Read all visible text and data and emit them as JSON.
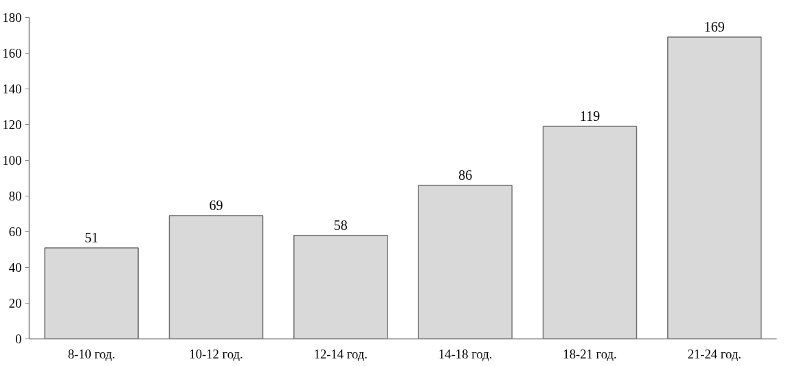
{
  "chart_data": {
    "type": "bar",
    "categories": [
      "8-10 год.",
      "10-12 год.",
      "12-14 год.",
      "14-18 год.",
      "18-21 год.",
      "21-24 год."
    ],
    "values": [
      51,
      69,
      58,
      86,
      119,
      169
    ],
    "color": "#d9d9d9",
    "ylim": [
      0,
      180
    ],
    "yticks": [
      0,
      20,
      40,
      60,
      80,
      100,
      120,
      140,
      160,
      180
    ],
    "grid": false,
    "data_labels": true
  }
}
